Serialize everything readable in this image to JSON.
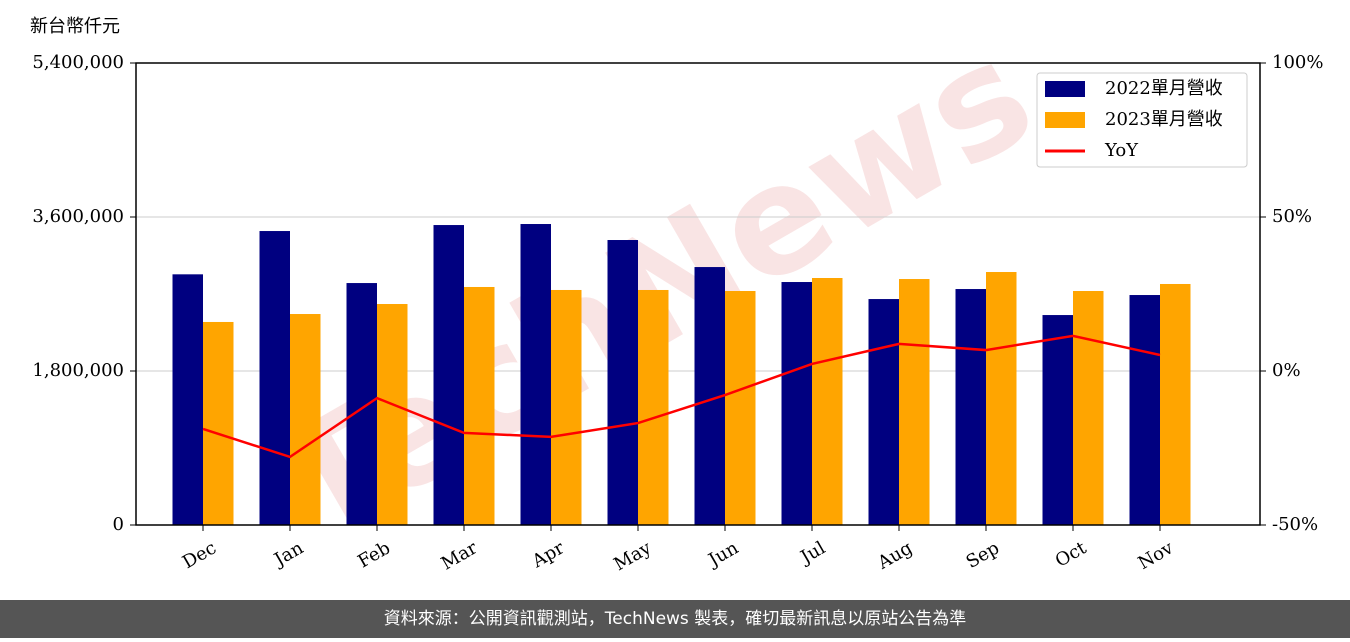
{
  "chart_data": {
    "type": "bar_line",
    "y_axis_label": "新台幣仟元",
    "watermark": "TechNews",
    "footer": "資料來源：公開資訊觀測站，TechNews 製表，確切最新訊息以原站公告為準",
    "categories": [
      "Dec",
      "Jan",
      "Feb",
      "Mar",
      "Apr",
      "May",
      "Jun",
      "Jul",
      "Aug",
      "Sep",
      "Oct",
      "Nov"
    ],
    "series": [
      {
        "name": "2022單月營收",
        "type": "bar",
        "color": "#000080",
        "values": [
          2930000,
          3436000,
          2828000,
          3506000,
          3518000,
          3331000,
          3015000,
          2840000,
          2641000,
          2758000,
          2454000,
          2688000
        ]
      },
      {
        "name": "2023單月營收",
        "type": "bar",
        "color": "#ffa500",
        "values": [
          2373000,
          2466000,
          2583000,
          2782000,
          2747000,
          2747000,
          2735000,
          2887000,
          2875000,
          2957000,
          2735000,
          2817000
        ]
      },
      {
        "name": "YoY",
        "type": "line",
        "axis": "y2",
        "color": "#ff0000",
        "values": [
          -18.8,
          -27.9,
          -8.8,
          -20.1,
          -21.4,
          -16.9,
          -7.8,
          2.3,
          8.8,
          6.8,
          11.4,
          5.2
        ]
      }
    ],
    "ylim": [
      0,
      5400000
    ],
    "yticks": [
      0,
      {
        "value": 1800000,
        "label": "1,800,000"
      },
      {
        "value": 3600000,
        "label": "3,600,000"
      },
      {
        "value": 5400000,
        "label": "5,400,000"
      }
    ],
    "y2lim": [
      -50,
      100
    ],
    "y2ticks": [
      {
        "value": -50,
        "label": "-50%"
      },
      {
        "value": 0,
        "label": "0%"
      },
      {
        "value": 50,
        "label": "50%"
      },
      {
        "value": 100,
        "label": "100%"
      }
    ],
    "grid": true,
    "legend": "upper right"
  }
}
